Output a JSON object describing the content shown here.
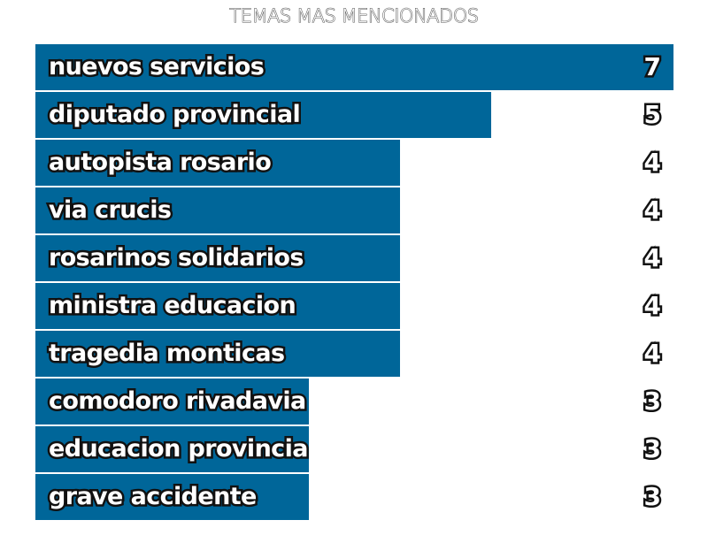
{
  "chart_data": {
    "type": "bar",
    "orientation": "horizontal",
    "title": "TEMAS MAS MENCIONADOS",
    "categories": [
      "nuevos servicios",
      "diputado provincial",
      "autopista rosario",
      "via crucis",
      "rosarinos solidarios",
      "ministra educacion",
      "tragedia monticas",
      "comodoro rivadavia",
      "educacion provincia",
      "grave accidente"
    ],
    "values": [
      7,
      5,
      4,
      4,
      4,
      4,
      4,
      3,
      3,
      3
    ],
    "xlim": [
      0,
      7
    ],
    "bar_color": "#006699",
    "grid": false,
    "legend": "none",
    "data_labels": "right"
  }
}
